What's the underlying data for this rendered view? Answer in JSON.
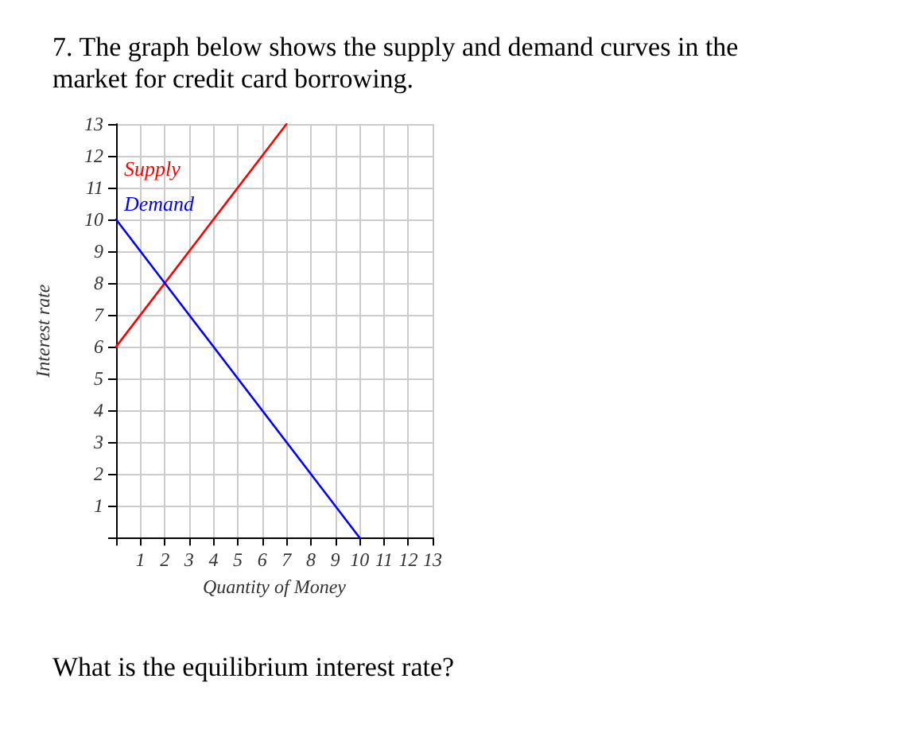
{
  "chart_data": {
    "type": "line",
    "title": "7. The graph below shows the supply and demand curves in the market for credit card borrowing.",
    "xlabel": "Quantity of Money",
    "ylabel": "Interest rate",
    "annotations": [
      "What is the equilibrium interest rate?"
    ],
    "series": [
      {
        "name": "Supply",
        "color": "#ff0000",
        "x": [
          0,
          7
        ],
        "values": [
          6,
          13
        ]
      },
      {
        "name": "Demand",
        "color": "#0000ff",
        "x": [
          0,
          10
        ],
        "values": [
          10,
          0
        ]
      }
    ],
    "xlim": [
      0,
      13
    ],
    "ylim": [
      0,
      13
    ],
    "xticks": [
      {
        "value": 0,
        "label": null
      },
      1,
      2,
      3,
      4,
      5,
      6,
      7,
      8,
      9,
      10,
      11,
      12,
      13
    ],
    "yticks": [
      {
        "value": 0,
        "label": null
      },
      1,
      2,
      3,
      4,
      5,
      6,
      7,
      8,
      9,
      10,
      11,
      12,
      13
    ],
    "grid": true,
    "legend": false,
    "marker": "none",
    "line_style": "solid"
  }
}
